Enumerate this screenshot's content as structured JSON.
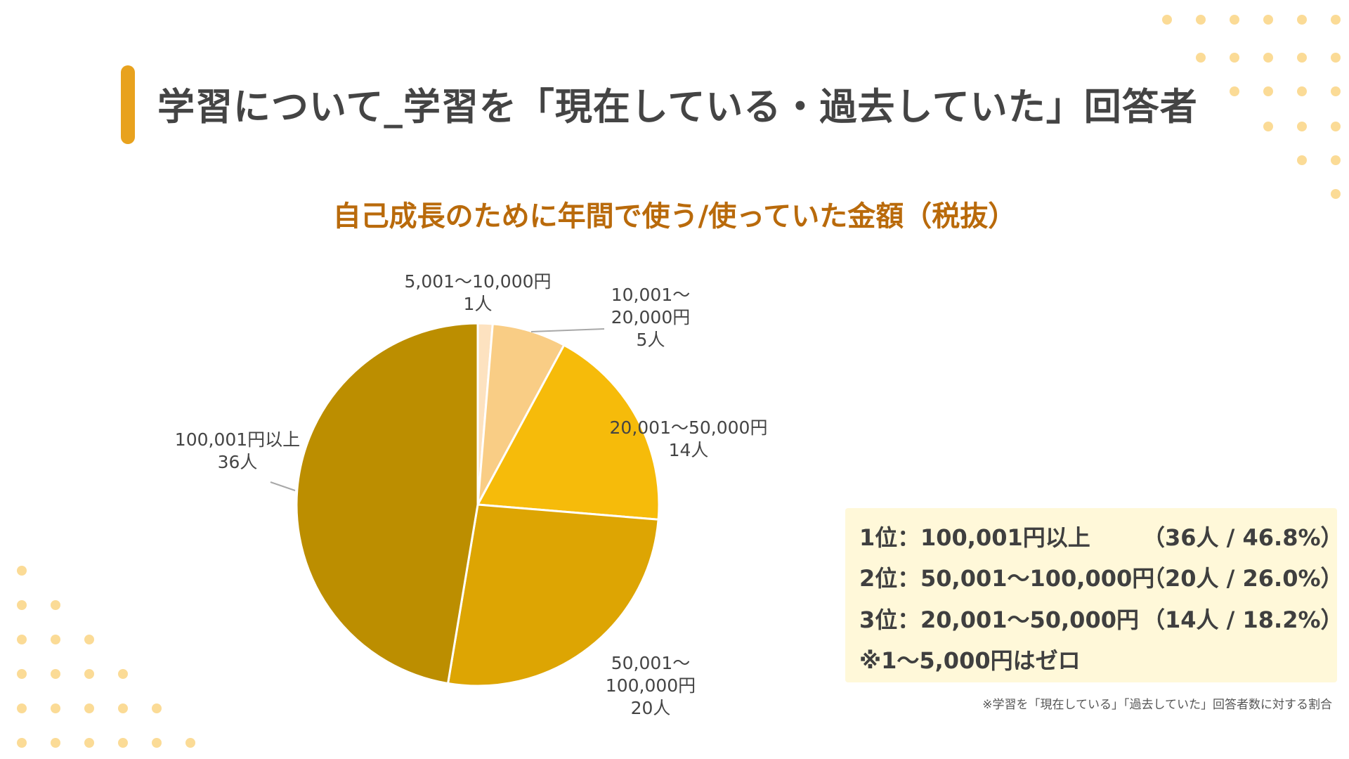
{
  "header": {
    "title": "学習について_学習を「現在している・過去していた」回答者"
  },
  "colors": {
    "accent": "#e8a21e",
    "subtitle": "#b96a0b",
    "dots": "#fbdb96",
    "summary_bg": "#fff8d9"
  },
  "chart_data": {
    "type": "pie",
    "title": "自己成長のために年間で使う/使っていた金額（税抜）",
    "slices": [
      {
        "label_lines": [
          "5,001～10,000円",
          "1人"
        ],
        "value": 1,
        "color": "#fde2c0"
      },
      {
        "label_lines": [
          "10,001～",
          "20,000円",
          "5人"
        ],
        "value": 5,
        "color": "#f9cd85"
      },
      {
        "label_lines": [
          "20,001～50,000円",
          "14人"
        ],
        "value": 14,
        "color": "#f6bb0a"
      },
      {
        "label_lines": [
          "50,001～",
          "100,000円",
          "20人"
        ],
        "value": 20,
        "color": "#dda503"
      },
      {
        "label_lines": [
          "100,001円以上",
          "36人"
        ],
        "value": 36,
        "color": "#bc8e00"
      }
    ],
    "start_angle_deg": 0,
    "direction": "clockwise",
    "legend": "none"
  },
  "summary": {
    "rows": [
      {
        "rank": "1位：",
        "range": "100,001円以上",
        "detail": "（36人 / 46.8%）"
      },
      {
        "rank": "2位：",
        "range": "50,001～100,000円",
        "detail": "（20人 / 26.0%）"
      },
      {
        "rank": "3位：",
        "range": "20,001～50,000円",
        "detail": "（14人 / 18.2%）"
      }
    ],
    "note": "※1～5,000円はゼロ"
  },
  "footnote": "※学習を「現在している」「過去していた」回答者数に対する割合"
}
